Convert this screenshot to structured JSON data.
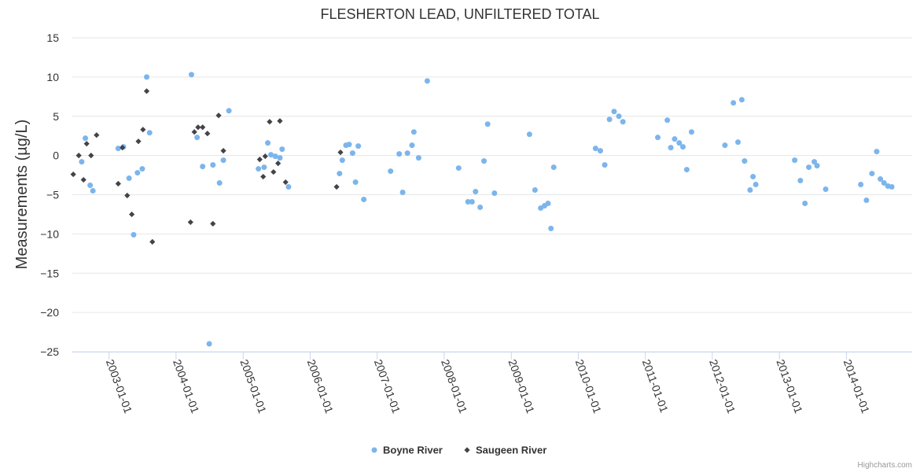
{
  "chart_data": {
    "type": "scatter",
    "title": "FLESHERTON LEAD, UNFILTERED TOTAL",
    "xlabel": "",
    "ylabel": "Measurements (µg/L)",
    "ylim": [
      -25,
      15
    ],
    "yticks": [
      15,
      10,
      5,
      0,
      -5,
      -10,
      -15,
      -20,
      -25
    ],
    "xlim": [
      "2002-06-15",
      "2014-12-25"
    ],
    "xticks": [
      "2003-01-01",
      "2004-01-01",
      "2005-01-01",
      "2006-01-01",
      "2007-01-01",
      "2008-01-01",
      "2009-01-01",
      "2010-01-01",
      "2011-01-01",
      "2012-01-01",
      "2013-01-01",
      "2014-01-01"
    ],
    "grid": true,
    "legend_position": "bottom-center",
    "series": [
      {
        "name": "Boyne River",
        "color": "#7cb5ec",
        "marker": "circle",
        "points": [
          [
            "2002-08-05",
            -0.8
          ],
          [
            "2002-08-25",
            2.2
          ],
          [
            "2002-09-20",
            -3.8
          ],
          [
            "2002-10-05",
            -4.5
          ],
          [
            "2003-02-20",
            0.9
          ],
          [
            "2003-03-20",
            1.1
          ],
          [
            "2003-04-20",
            -2.9
          ],
          [
            "2003-05-15",
            -10.1
          ],
          [
            "2003-06-05",
            -2.2
          ],
          [
            "2003-07-01",
            -1.7
          ],
          [
            "2003-07-25",
            10.0
          ],
          [
            "2003-08-10",
            2.9
          ],
          [
            "2004-03-25",
            10.3
          ],
          [
            "2004-04-25",
            2.3
          ],
          [
            "2004-05-25",
            -1.4
          ],
          [
            "2004-06-30",
            -24.0
          ],
          [
            "2004-07-20",
            -1.2
          ],
          [
            "2004-08-25",
            -3.5
          ],
          [
            "2004-09-15",
            -0.6
          ],
          [
            "2004-10-15",
            5.7
          ],
          [
            "2005-03-25",
            -1.7
          ],
          [
            "2005-04-25",
            -1.5
          ],
          [
            "2005-05-15",
            1.6
          ],
          [
            "2005-06-01",
            0.1
          ],
          [
            "2005-06-25",
            -0.1
          ],
          [
            "2005-07-20",
            -0.3
          ],
          [
            "2005-08-01",
            0.8
          ],
          [
            "2005-09-05",
            -4.0
          ],
          [
            "2006-06-10",
            -2.3
          ],
          [
            "2006-06-25",
            -0.6
          ],
          [
            "2006-07-15",
            1.3
          ],
          [
            "2006-08-01",
            1.4
          ],
          [
            "2006-08-20",
            0.3
          ],
          [
            "2006-09-05",
            -3.4
          ],
          [
            "2006-09-20",
            1.2
          ],
          [
            "2006-10-20",
            -5.6
          ],
          [
            "2007-03-15",
            -2.0
          ],
          [
            "2007-05-01",
            0.2
          ],
          [
            "2007-05-20",
            -4.7
          ],
          [
            "2007-06-15",
            0.3
          ],
          [
            "2007-07-10",
            1.3
          ],
          [
            "2007-07-20",
            3.0
          ],
          [
            "2007-08-15",
            -0.3
          ],
          [
            "2007-10-01",
            9.5
          ],
          [
            "2008-03-20",
            -1.6
          ],
          [
            "2008-05-10",
            -5.9
          ],
          [
            "2008-06-01",
            -5.9
          ],
          [
            "2008-06-20",
            -4.6
          ],
          [
            "2008-07-15",
            -6.6
          ],
          [
            "2008-08-05",
            -0.7
          ],
          [
            "2008-08-25",
            4.0
          ],
          [
            "2008-10-01",
            -4.8
          ],
          [
            "2009-04-10",
            2.7
          ],
          [
            "2009-05-10",
            -4.4
          ],
          [
            "2009-06-10",
            -6.7
          ],
          [
            "2009-07-01",
            -6.4
          ],
          [
            "2009-07-20",
            -6.1
          ],
          [
            "2009-08-05",
            -9.3
          ],
          [
            "2009-08-20",
            -1.5
          ],
          [
            "2010-04-05",
            0.9
          ],
          [
            "2010-05-01",
            0.6
          ],
          [
            "2010-05-25",
            -1.2
          ],
          [
            "2010-06-20",
            4.6
          ],
          [
            "2010-07-15",
            5.6
          ],
          [
            "2010-08-10",
            5.0
          ],
          [
            "2010-09-01",
            4.3
          ],
          [
            "2011-03-10",
            2.3
          ],
          [
            "2011-05-01",
            4.5
          ],
          [
            "2011-05-20",
            1.0
          ],
          [
            "2011-06-10",
            2.1
          ],
          [
            "2011-07-05",
            1.6
          ],
          [
            "2011-07-25",
            1.1
          ],
          [
            "2011-08-15",
            -1.8
          ],
          [
            "2011-09-10",
            3.0
          ],
          [
            "2012-03-10",
            1.3
          ],
          [
            "2012-04-25",
            6.7
          ],
          [
            "2012-05-20",
            1.7
          ],
          [
            "2012-06-10",
            7.1
          ],
          [
            "2012-06-25",
            -0.7
          ],
          [
            "2012-07-25",
            -4.4
          ],
          [
            "2012-08-10",
            -2.7
          ],
          [
            "2012-08-25",
            -3.7
          ],
          [
            "2013-03-25",
            -0.6
          ],
          [
            "2013-04-25",
            -3.2
          ],
          [
            "2013-05-20",
            -6.1
          ],
          [
            "2013-06-10",
            -1.5
          ],
          [
            "2013-07-10",
            -0.8
          ],
          [
            "2013-07-25",
            -1.3
          ],
          [
            "2013-09-10",
            -4.3
          ],
          [
            "2014-03-20",
            -3.7
          ],
          [
            "2014-04-20",
            -5.7
          ],
          [
            "2014-05-20",
            -2.3
          ],
          [
            "2014-06-15",
            0.5
          ],
          [
            "2014-07-05",
            -3.0
          ],
          [
            "2014-07-25",
            -3.5
          ],
          [
            "2014-08-15",
            -3.9
          ],
          [
            "2014-09-05",
            -4.0
          ]
        ]
      },
      {
        "name": "Saugeen River",
        "color": "#434348",
        "marker": "diamond",
        "points": [
          [
            "2002-06-20",
            -2.4
          ],
          [
            "2002-07-20",
            0.0
          ],
          [
            "2002-08-15",
            -3.1
          ],
          [
            "2002-09-01",
            1.5
          ],
          [
            "2002-09-25",
            0.0
          ],
          [
            "2002-10-25",
            2.6
          ],
          [
            "2003-02-20",
            -3.6
          ],
          [
            "2003-03-15",
            1.0
          ],
          [
            "2003-04-10",
            -5.1
          ],
          [
            "2003-05-05",
            -7.5
          ],
          [
            "2003-06-10",
            1.8
          ],
          [
            "2003-07-05",
            3.3
          ],
          [
            "2003-07-25",
            8.2
          ],
          [
            "2003-08-25",
            -11.0
          ],
          [
            "2004-03-20",
            -8.5
          ],
          [
            "2004-04-10",
            3.0
          ],
          [
            "2004-04-30",
            3.6
          ],
          [
            "2004-05-25",
            3.6
          ],
          [
            "2004-06-20",
            2.8
          ],
          [
            "2004-07-20",
            -8.7
          ],
          [
            "2004-08-20",
            5.1
          ],
          [
            "2004-09-15",
            0.6
          ],
          [
            "2005-04-01",
            -0.5
          ],
          [
            "2005-04-20",
            -2.7
          ],
          [
            "2005-05-01",
            -0.1
          ],
          [
            "2005-05-25",
            4.3
          ],
          [
            "2005-06-15",
            -2.1
          ],
          [
            "2005-07-10",
            -1.0
          ],
          [
            "2005-07-20",
            4.4
          ],
          [
            "2005-08-20",
            -3.4
          ],
          [
            "2006-05-25",
            -4.0
          ],
          [
            "2006-06-15",
            0.4
          ]
        ]
      }
    ]
  },
  "credits": "Highcharts.com"
}
